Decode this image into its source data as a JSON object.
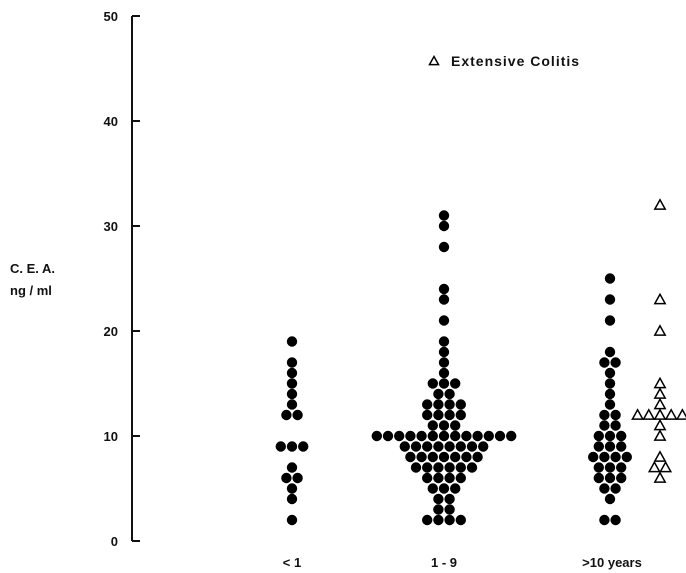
{
  "chart_data": {
    "type": "scatter",
    "title": "",
    "xlabel": "",
    "ylabel_lines": [
      "C. E. A.",
      "ng / ml"
    ],
    "ylim": [
      0,
      50
    ],
    "yticks": [
      0,
      10,
      20,
      30,
      40,
      50
    ],
    "categories": [
      "< 1",
      "1 - 9",
      ">10 years"
    ],
    "legend": {
      "label": "Extensive Colitis",
      "marker": "open-triangle",
      "position": "top-right"
    },
    "series": [
      {
        "marker": "filled-circle",
        "groups": [
          {
            "category": "< 1",
            "values": [
              19,
              17,
              16,
              15,
              14,
              13,
              12,
              12,
              9,
              9,
              9,
              7,
              6,
              6,
              5,
              4,
              2
            ]
          },
          {
            "category": "1 - 9",
            "values": [
              31,
              30,
              28,
              24,
              23,
              21,
              19,
              18,
              17,
              16,
              15,
              15,
              15,
              14,
              14,
              13,
              13,
              13,
              13,
              12,
              12,
              12,
              12,
              11,
              11,
              11,
              10,
              10,
              10,
              10,
              10,
              10,
              10,
              10,
              10,
              10,
              10,
              10,
              10,
              9,
              9,
              9,
              9,
              9,
              9,
              9,
              9,
              8,
              8,
              8,
              8,
              8,
              8,
              8,
              7,
              7,
              7,
              7,
              7,
              7,
              6,
              6,
              6,
              6,
              5,
              5,
              5,
              4,
              4,
              3,
              3,
              2,
              2,
              2,
              2
            ]
          },
          {
            "category": ">10 years",
            "values": [
              25,
              23,
              21,
              18,
              17,
              17,
              16,
              15,
              14,
              13,
              12,
              12,
              11,
              11,
              10,
              10,
              10,
              9,
              9,
              9,
              8,
              8,
              8,
              8,
              7,
              7,
              7,
              6,
              6,
              6,
              5,
              5,
              4,
              2,
              2
            ]
          }
        ]
      },
      {
        "name": "Extensive Colitis",
        "marker": "open-triangle",
        "groups": [
          {
            "category": ">10 years",
            "values": [
              32,
              23,
              20,
              15,
              14,
              13,
              12,
              12,
              12,
              12,
              12,
              11,
              10,
              8,
              7,
              7,
              6
            ]
          }
        ]
      }
    ]
  }
}
